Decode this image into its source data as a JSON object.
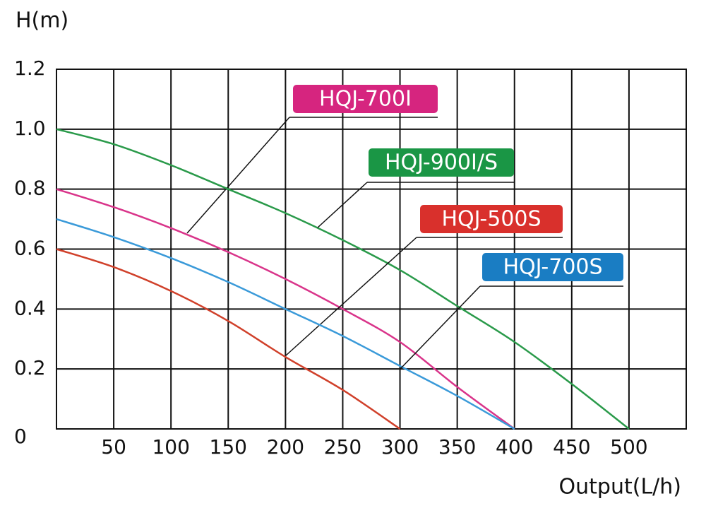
{
  "chart_data": {
    "type": "line",
    "ylabel": "H(m)",
    "xlabel": "Output(L/h)",
    "xlim": [
      0,
      550
    ],
    "ylim": [
      0,
      1.2
    ],
    "xticks": [
      50,
      100,
      150,
      200,
      250,
      300,
      350,
      400,
      450,
      500
    ],
    "yticks": [
      0,
      0.2,
      0.4,
      0.6,
      0.8,
      {
        "value": 1,
        "label": "1.0"
      },
      1.2
    ],
    "grid": true,
    "series": [
      {
        "name": "HQJ-700I",
        "color": "#d9348a",
        "label_color": "#d6257f",
        "x": [
          0,
          50,
          100,
          150,
          200,
          250,
          300,
          350,
          400
        ],
        "values": [
          0.8,
          0.74,
          0.67,
          0.59,
          0.5,
          0.4,
          0.29,
          0.14,
          0
        ]
      },
      {
        "name": "HQJ-900I/S",
        "color": "#2a9a4a",
        "label_color": "#1a9645",
        "x": [
          0,
          50,
          100,
          150,
          200,
          250,
          300,
          350,
          400,
          450,
          500
        ],
        "values": [
          1,
          0.95,
          0.88,
          0.8,
          0.72,
          0.63,
          0.53,
          0.41,
          0.29,
          0.15,
          0
        ]
      },
      {
        "name": "HQJ-500S",
        "color": "#d0402a",
        "label_color": "#d9302c",
        "x": [
          0,
          50,
          100,
          150,
          200,
          250,
          300
        ],
        "values": [
          0.6,
          0.54,
          0.46,
          0.36,
          0.24,
          0.13,
          0
        ]
      },
      {
        "name": "HQJ-700S",
        "color": "#3a9ad9",
        "label_color": "#1a7dc3",
        "x": [
          0,
          50,
          100,
          150,
          200,
          250,
          300,
          350,
          400
        ],
        "values": [
          0.7,
          0.64,
          0.57,
          0.49,
          0.4,
          0.31,
          0.21,
          0.11,
          0
        ]
      }
    ]
  }
}
